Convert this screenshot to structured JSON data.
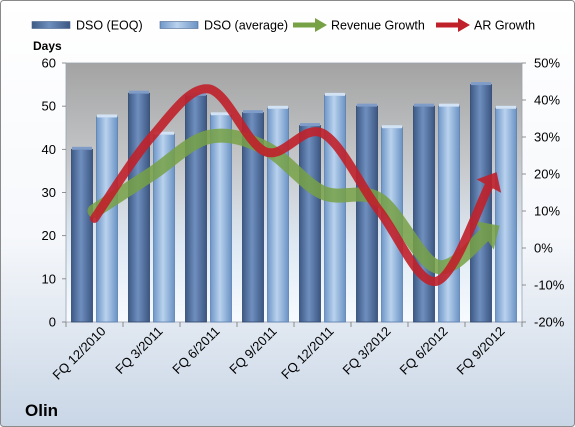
{
  "chart_data": {
    "type": "bar",
    "company_label": "Olin",
    "ylabel": "Days",
    "ylim": [
      0,
      60
    ],
    "yticks": [
      "0",
      "10",
      "20",
      "30",
      "40",
      "50",
      "60"
    ],
    "y2lim": [
      -20,
      50
    ],
    "y2ticks": [
      "-20%",
      "-10%",
      "0%",
      "10%",
      "20%",
      "30%",
      "40%",
      "50%"
    ],
    "categories": [
      "FQ 12/2010",
      "FQ 3/2011",
      "FQ 6/2011",
      "FQ 9/2011",
      "FQ 12/2011",
      "FQ 3/2012",
      "FQ 6/2012",
      "FQ 9/2012"
    ],
    "bar_series": [
      {
        "name": "DSO (EOQ)",
        "values": [
          40,
          53,
          52.5,
          48.5,
          45.5,
          50,
          50,
          55
        ],
        "color": "#4f6fa0"
      },
      {
        "name": "DSO (average)",
        "values": [
          47.5,
          43.5,
          48,
          49.5,
          52.5,
          45,
          50,
          49.5
        ],
        "color": "#8fb3de"
      }
    ],
    "line_series": [
      {
        "name": "Revenue Growth",
        "axis": "right",
        "values": [
          10,
          20,
          30,
          27,
          15,
          13,
          -5,
          5
        ],
        "color": "#77a145"
      },
      {
        "name": "AR Growth",
        "axis": "right",
        "values": [
          8,
          30,
          43,
          26,
          31,
          10,
          -9,
          19
        ],
        "color": "#c0202a"
      }
    ],
    "grid": false,
    "legend_position": "top"
  }
}
